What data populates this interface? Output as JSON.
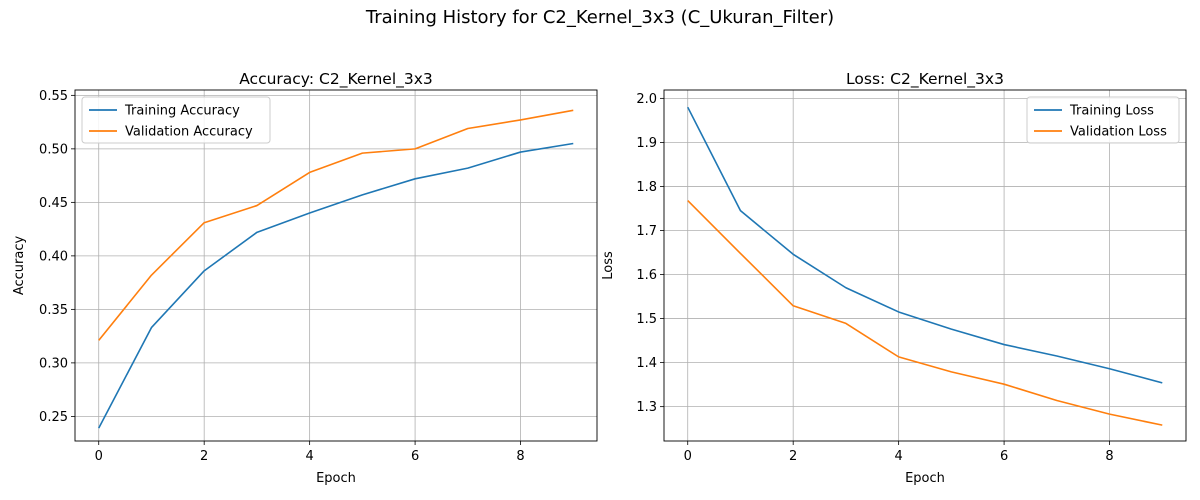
{
  "figure": {
    "title": "Training History for C2_Kernel_3x3 (C_Ukuran_Filter)"
  },
  "colors": {
    "training": "#1f77b4",
    "validation": "#ff7f0e",
    "grid": "#b0b0b0",
    "axes": "#000000"
  },
  "chart_data": [
    {
      "type": "line",
      "title": "Accuracy: C2_Kernel_3x3",
      "xlabel": "Epoch",
      "ylabel": "Accuracy",
      "x": [
        0,
        1,
        2,
        3,
        4,
        5,
        6,
        7,
        8,
        9
      ],
      "xlim": [
        -0.45,
        9.45
      ],
      "ylim": [
        0.227,
        0.555
      ],
      "xticks": [
        0,
        2,
        4,
        6,
        8
      ],
      "yticks": [
        0.25,
        0.3,
        0.35,
        0.4,
        0.45,
        0.5,
        0.55
      ],
      "ytick_labels": [
        "0.25",
        "0.30",
        "0.35",
        "0.40",
        "0.45",
        "0.50",
        "0.55"
      ],
      "grid": true,
      "legend_position": "upper-left",
      "series": [
        {
          "name": "Training Accuracy",
          "color": "#1f77b4",
          "values": [
            0.239,
            0.333,
            0.386,
            0.422,
            0.44,
            0.457,
            0.472,
            0.482,
            0.497,
            0.505
          ]
        },
        {
          "name": "Validation Accuracy",
          "color": "#ff7f0e",
          "values": [
            0.321,
            0.382,
            0.431,
            0.447,
            0.478,
            0.496,
            0.5,
            0.519,
            0.527,
            0.536
          ]
        }
      ]
    },
    {
      "type": "line",
      "title": "Loss: C2_Kernel_3x3",
      "xlabel": "Epoch",
      "ylabel": "Loss",
      "x": [
        0,
        1,
        2,
        3,
        4,
        5,
        6,
        7,
        8,
        9
      ],
      "xlim": [
        -0.45,
        9.45
      ],
      "ylim": [
        1.222,
        2.019
      ],
      "xticks": [
        0,
        2,
        4,
        6,
        8
      ],
      "yticks": [
        1.3,
        1.4,
        1.5,
        1.6,
        1.7,
        1.8,
        1.9,
        2.0
      ],
      "ytick_labels": [
        "1.3",
        "1.4",
        "1.5",
        "1.6",
        "1.7",
        "1.8",
        "1.9",
        "2.0"
      ],
      "grid": true,
      "legend_position": "upper-right",
      "series": [
        {
          "name": "Training Loss",
          "color": "#1f77b4",
          "values": [
            1.98,
            1.745,
            1.646,
            1.57,
            1.515,
            1.476,
            1.441,
            1.415,
            1.386,
            1.354
          ]
        },
        {
          "name": "Validation Loss",
          "color": "#ff7f0e",
          "values": [
            1.768,
            1.648,
            1.529,
            1.489,
            1.413,
            1.379,
            1.351,
            1.314,
            1.283,
            1.258
          ]
        }
      ]
    }
  ]
}
